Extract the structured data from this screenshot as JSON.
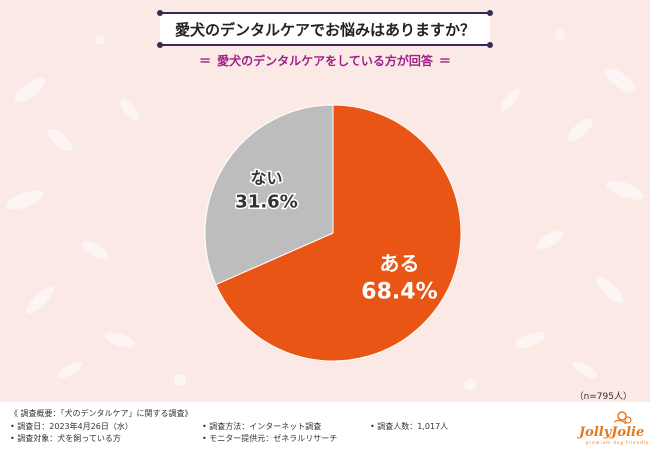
{
  "header": {
    "title": "愛犬のデンタルケアでお悩みはありますか？",
    "subtitle": "愛犬のデンタルケアをしている方が回答",
    "subtitle_deco": "＝"
  },
  "chart_data": {
    "type": "pie",
    "slices": [
      {
        "label": "ある",
        "value": 68.4,
        "value_text": "68.4%",
        "color": "#e95514"
      },
      {
        "label": "ない",
        "value": 31.6,
        "value_text": "31.6%",
        "color": "#bdbdbd"
      }
    ]
  },
  "sample": "（n=795人）",
  "footer": {
    "items": [
      "《 調査概要：「犬のデンタルケア」に関する調査》",
      "• 調査日：2023年4月26日（水）",
      "• 調査対象：犬を飼っている方",
      "• 調査方法：インターネット調査",
      "• モニター提供元：ゼネラルリサーチ",
      "• 調査人数：1,017人"
    ]
  },
  "logo": {
    "text": "JollyJolie",
    "sub": "premium dog friendly",
    "color": "#e8781c"
  },
  "colors": {
    "title_border": "#3b2a55",
    "subtitle": "#a0208a",
    "background": "#fbe9e6"
  }
}
